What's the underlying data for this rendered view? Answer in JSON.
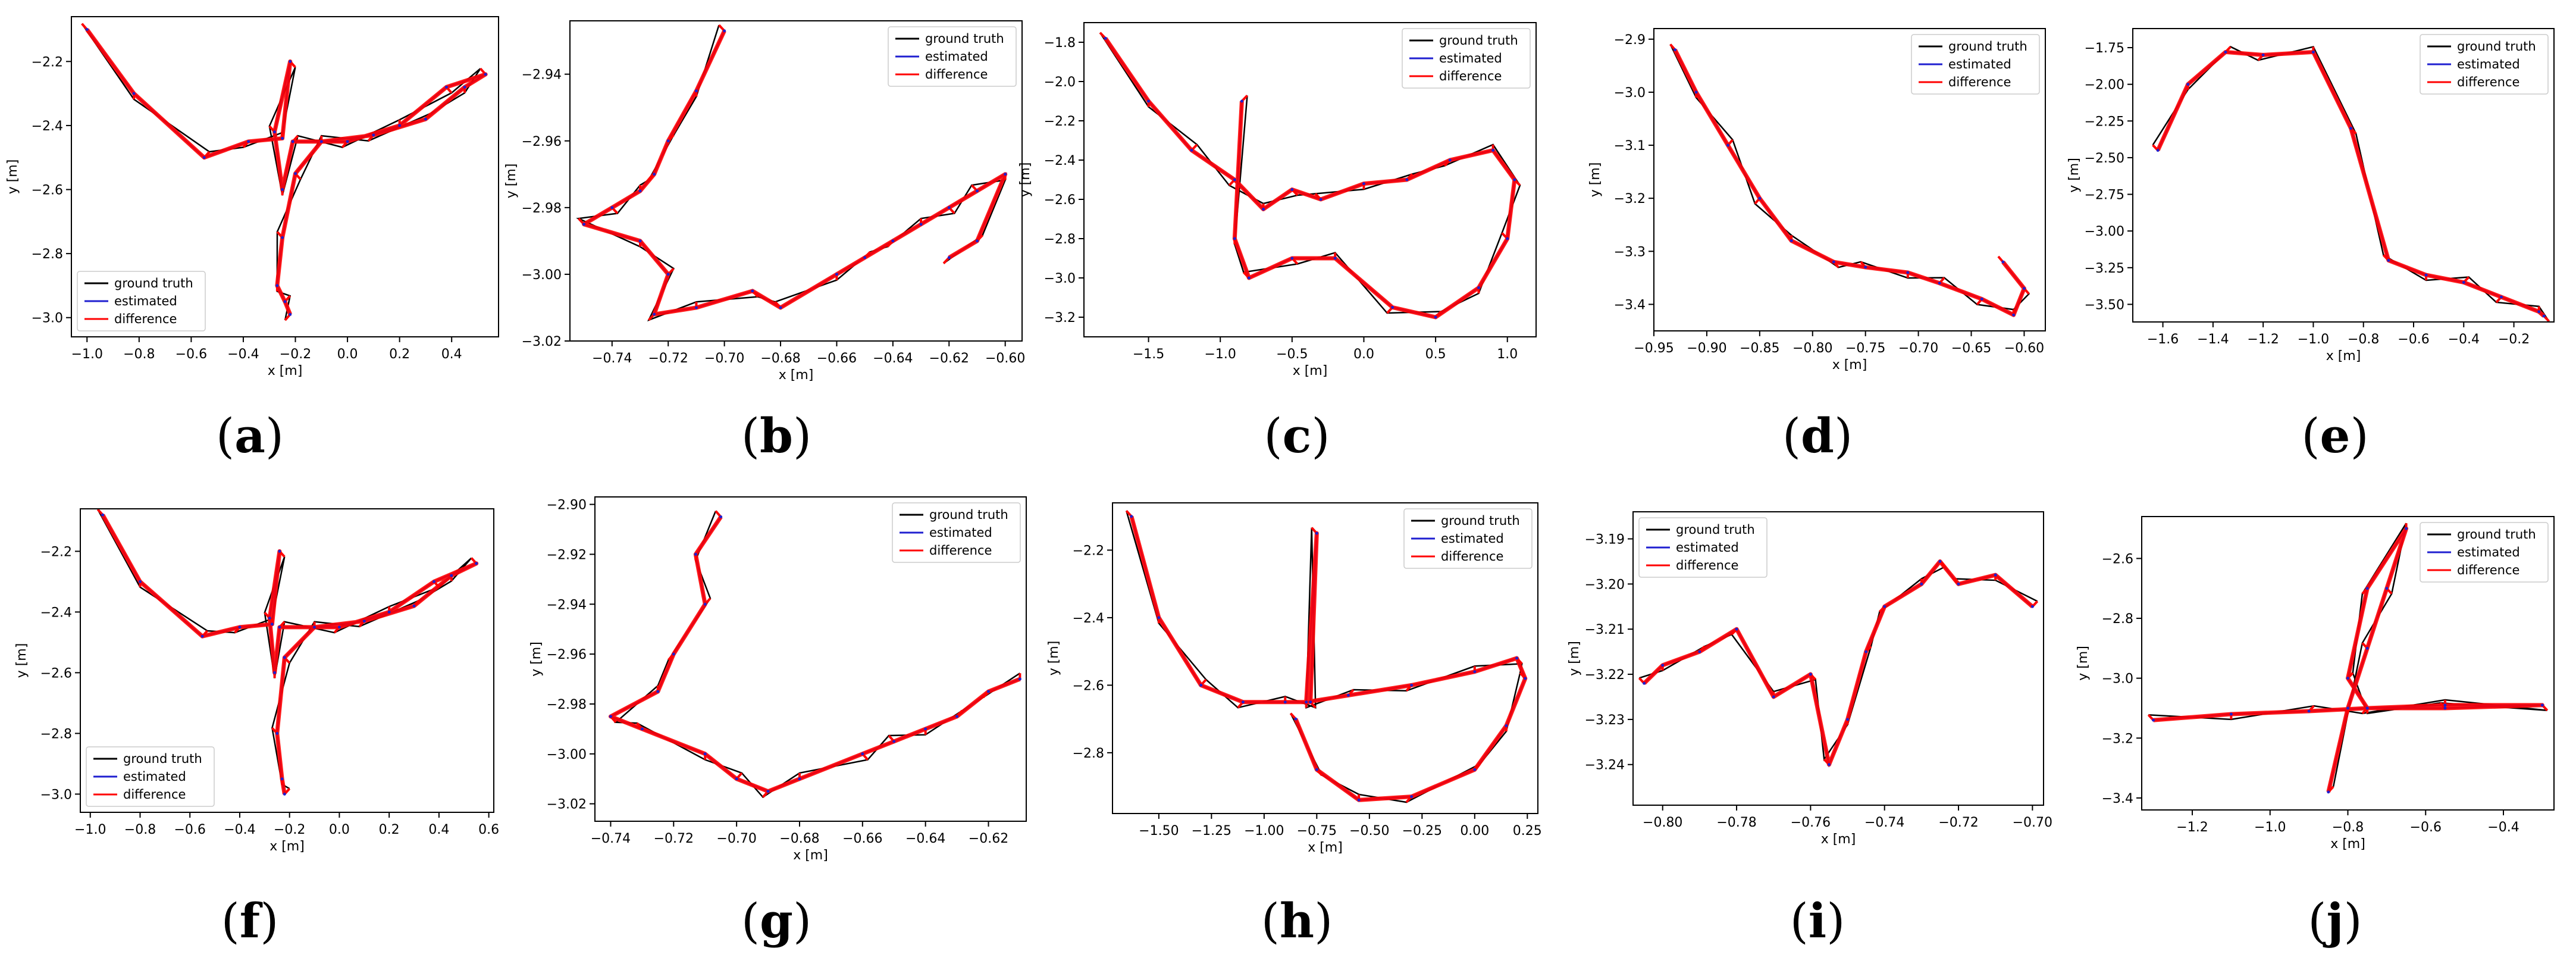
{
  "chart_data": [
    {
      "type": "line",
      "caption": "a",
      "xlabel": "x [m]",
      "ylabel": "y [m]",
      "xticks": [
        "−1.0",
        "−0.8",
        "−0.6",
        "−0.4",
        "−0.2",
        "0.0",
        "0.2",
        "0.4"
      ],
      "yticks": [
        "−2.2",
        "−2.4",
        "−2.6",
        "−2.8",
        "−3.0"
      ],
      "xlim": [
        -1.06,
        0.58
      ],
      "ylim": [
        -3.06,
        -2.06
      ],
      "legend_loc": "lower-left",
      "legend": [
        "ground truth",
        "estimated",
        "difference"
      ],
      "series": [
        {
          "name": "estimated",
          "x": [
            -1.0,
            -0.82,
            -0.55,
            -0.38,
            -0.25,
            -0.22,
            -0.28,
            -0.25,
            -0.21,
            0.0,
            0.2,
            0.38,
            0.53,
            0.45,
            0.3,
            0.1,
            -0.1,
            -0.2,
            -0.25,
            -0.27,
            -0.24,
            -0.22
          ],
          "y": [
            -2.1,
            -2.3,
            -2.5,
            -2.45,
            -2.44,
            -2.2,
            -2.42,
            -2.6,
            -2.45,
            -2.45,
            -2.4,
            -2.28,
            -2.24,
            -2.28,
            -2.38,
            -2.43,
            -2.45,
            -2.55,
            -2.75,
            -2.9,
            -2.95,
            -2.99
          ]
        }
      ]
    },
    {
      "type": "line",
      "caption": "b",
      "xlabel": "x [m]",
      "ylabel": "y [m]",
      "xticks": [
        "−0.74",
        "−0.72",
        "−0.70",
        "−0.68",
        "−0.66",
        "−0.64",
        "−0.62",
        "−0.60"
      ],
      "yticks": [
        "−2.94",
        "−2.96",
        "−2.98",
        "−3.00",
        "−3.02"
      ],
      "xlim": [
        -0.755,
        -0.594
      ],
      "ylim": [
        -3.02,
        -2.924
      ],
      "legend_loc": "top-right",
      "legend": [
        "ground truth",
        "estimated",
        "difference"
      ],
      "series": [
        {
          "name": "estimated",
          "x": [
            -0.7,
            -0.71,
            -0.72,
            -0.725,
            -0.73,
            -0.74,
            -0.75,
            -0.73,
            -0.72,
            -0.725,
            -0.71,
            -0.69,
            -0.68,
            -0.66,
            -0.65,
            -0.64,
            -0.63,
            -0.62,
            -0.61,
            -0.6,
            -0.61,
            -0.62
          ],
          "y": [
            -2.927,
            -2.945,
            -2.96,
            -2.97,
            -2.975,
            -2.98,
            -2.985,
            -2.99,
            -3.0,
            -3.012,
            -3.01,
            -3.005,
            -3.01,
            -3.0,
            -2.995,
            -2.99,
            -2.985,
            -2.98,
            -2.975,
            -2.97,
            -2.99,
            -2.995
          ]
        }
      ]
    },
    {
      "type": "line",
      "caption": "c",
      "xlabel": "x [m]",
      "ylabel": "y [m]",
      "xticks": [
        "−1.5",
        "−1.0",
        "−0.5",
        "0.0",
        "0.5",
        "1.0"
      ],
      "yticks": [
        "−1.8",
        "−2.0",
        "−2.2",
        "−2.4",
        "−2.6",
        "−2.8",
        "−3.0",
        "−3.2"
      ],
      "xlim": [
        -1.95,
        1.2
      ],
      "ylim": [
        -3.3,
        -1.7
      ],
      "legend_loc": "top-right",
      "legend": [
        "ground truth",
        "estimated",
        "difference"
      ],
      "series": [
        {
          "name": "estimated",
          "x": [
            -1.8,
            -1.5,
            -1.2,
            -0.9,
            -0.7,
            -0.5,
            -0.3,
            0.0,
            0.3,
            0.6,
            0.9,
            1.05,
            1.0,
            0.8,
            0.5,
            0.2,
            -0.2,
            -0.5,
            -0.8,
            -0.9,
            -0.85
          ],
          "y": [
            -1.78,
            -2.1,
            -2.35,
            -2.5,
            -2.65,
            -2.55,
            -2.6,
            -2.52,
            -2.5,
            -2.4,
            -2.35,
            -2.5,
            -2.8,
            -3.05,
            -3.2,
            -3.15,
            -2.9,
            -2.9,
            -3.0,
            -2.8,
            -2.1
          ]
        }
      ]
    },
    {
      "type": "line",
      "caption": "d",
      "xlabel": "x [m]",
      "ylabel": "y [m]",
      "xticks": [
        "−0.95",
        "−0.90",
        "−0.85",
        "−0.80",
        "−0.75",
        "−0.70",
        "−0.65",
        "−0.60"
      ],
      "yticks": [
        "−2.9",
        "−3.0",
        "−3.1",
        "−3.2",
        "−3.3",
        "−3.4"
      ],
      "xlim": [
        -0.95,
        -0.58
      ],
      "ylim": [
        -3.45,
        -2.88
      ],
      "legend_loc": "top-right",
      "legend": [
        "ground truth",
        "estimated",
        "difference"
      ],
      "series": [
        {
          "name": "estimated",
          "x": [
            -0.93,
            -0.91,
            -0.88,
            -0.85,
            -0.82,
            -0.78,
            -0.75,
            -0.71,
            -0.68,
            -0.64,
            -0.61,
            -0.6,
            -0.62
          ],
          "y": [
            -2.92,
            -3.0,
            -3.1,
            -3.2,
            -3.28,
            -3.32,
            -3.33,
            -3.34,
            -3.36,
            -3.39,
            -3.42,
            -3.37,
            -3.32
          ]
        }
      ]
    },
    {
      "type": "line",
      "caption": "e",
      "xlabel": "x [m]",
      "ylabel": "y [m]",
      "xticks": [
        "−1.6",
        "−1.4",
        "−1.2",
        "−1.0",
        "−0.8",
        "−0.6",
        "−0.4",
        "−0.2"
      ],
      "yticks": [
        "−1.75",
        "−2.00",
        "−2.25",
        "−2.50",
        "−2.75",
        "−3.00",
        "−3.25",
        "−3.50"
      ],
      "xlim": [
        -1.72,
        -0.04
      ],
      "ylim": [
        -3.62,
        -1.62
      ],
      "legend_loc": "top-right",
      "legend": [
        "ground truth",
        "estimated",
        "difference"
      ],
      "series": [
        {
          "name": "estimated",
          "x": [
            -1.62,
            -1.5,
            -1.35,
            -1.2,
            -1.0,
            -0.85,
            -0.7,
            -0.55,
            -0.4,
            -0.25,
            -0.1,
            -0.08
          ],
          "y": [
            -2.45,
            -2.0,
            -1.78,
            -1.8,
            -1.78,
            -2.3,
            -3.2,
            -3.3,
            -3.35,
            -3.45,
            -3.55,
            -3.58
          ]
        }
      ]
    },
    {
      "type": "line",
      "caption": "f",
      "xlabel": "x [m]",
      "ylabel": "y [m]",
      "xticks": [
        "−1.0",
        "−0.8",
        "−0.6",
        "−0.4",
        "−0.2",
        "0.0",
        "0.2",
        "0.4",
        "0.6"
      ],
      "yticks": [
        "−2.2",
        "−2.4",
        "−2.6",
        "−2.8",
        "−3.0"
      ],
      "xlim": [
        -1.04,
        0.62
      ],
      "ylim": [
        -3.06,
        -2.06
      ],
      "legend_loc": "lower-left",
      "legend": [
        "ground truth",
        "estimated",
        "difference"
      ],
      "series": [
        {
          "name": "estimated",
          "x": [
            -0.95,
            -0.8,
            -0.55,
            -0.4,
            -0.27,
            -0.24,
            -0.28,
            -0.26,
            -0.24,
            0.0,
            0.2,
            0.38,
            0.55,
            0.45,
            0.3,
            0.1,
            -0.1,
            -0.22,
            -0.25,
            -0.23,
            -0.22
          ],
          "y": [
            -2.08,
            -2.3,
            -2.48,
            -2.45,
            -2.44,
            -2.2,
            -2.42,
            -2.6,
            -2.45,
            -2.45,
            -2.4,
            -2.3,
            -2.24,
            -2.28,
            -2.38,
            -2.43,
            -2.45,
            -2.55,
            -2.8,
            -2.95,
            -3.0
          ]
        }
      ]
    },
    {
      "type": "line",
      "caption": "g",
      "xlabel": "x [m]",
      "ylabel": "y [m]",
      "xticks": [
        "−0.74",
        "−0.72",
        "−0.70",
        "−0.68",
        "−0.66",
        "−0.64",
        "−0.62"
      ],
      "yticks": [
        "−2.90",
        "−2.92",
        "−2.94",
        "−2.96",
        "−2.98",
        "−3.00",
        "−3.02"
      ],
      "xlim": [
        -0.745,
        -0.608
      ],
      "ylim": [
        -3.027,
        -2.897
      ],
      "legend_loc": "top-right",
      "legend": [
        "ground truth",
        "estimated",
        "difference"
      ],
      "series": [
        {
          "name": "estimated",
          "x": [
            -0.705,
            -0.713,
            -0.71,
            -0.72,
            -0.725,
            -0.74,
            -0.73,
            -0.71,
            -0.7,
            -0.69,
            -0.68,
            -0.66,
            -0.65,
            -0.64,
            -0.63,
            -0.62,
            -0.61
          ],
          "y": [
            -2.905,
            -2.92,
            -2.94,
            -2.96,
            -2.975,
            -2.985,
            -2.99,
            -3.0,
            -3.01,
            -3.015,
            -3.01,
            -3.0,
            -2.995,
            -2.99,
            -2.985,
            -2.975,
            -2.97
          ]
        }
      ]
    },
    {
      "type": "line",
      "caption": "h",
      "xlabel": "x [m]",
      "ylabel": "y [m]",
      "xticks": [
        "−1.50",
        "−1.25",
        "−1.00",
        "−0.75",
        "−0.50",
        "−0.25",
        "0.00",
        "0.25"
      ],
      "yticks": [
        "−2.2",
        "−2.4",
        "−2.6",
        "−2.8"
      ],
      "xlim": [
        -1.72,
        0.3
      ],
      "ylim": [
        -2.98,
        -2.06
      ],
      "legend_loc": "top-right",
      "legend": [
        "ground truth",
        "estimated",
        "difference"
      ],
      "series": [
        {
          "name": "estimated",
          "x": [
            -1.63,
            -1.5,
            -1.3,
            -1.1,
            -0.9,
            -0.78,
            -0.75,
            -0.8,
            -0.6,
            -0.3,
            0.0,
            0.2,
            0.24,
            0.15,
            0.0,
            -0.3,
            -0.55,
            -0.75,
            -0.85
          ],
          "y": [
            -2.1,
            -2.4,
            -2.6,
            -2.65,
            -2.65,
            -2.65,
            -2.15,
            -2.65,
            -2.63,
            -2.6,
            -2.56,
            -2.52,
            -2.58,
            -2.72,
            -2.85,
            -2.93,
            -2.94,
            -2.85,
            -2.7
          ]
        }
      ]
    },
    {
      "type": "line",
      "caption": "i",
      "xlabel": "x [m]",
      "ylabel": "y [m]",
      "xticks": [
        "−0.80",
        "−0.78",
        "−0.76",
        "−0.74",
        "−0.72",
        "−0.70"
      ],
      "yticks": [
        "−3.19",
        "−3.20",
        "−3.21",
        "−3.22",
        "−3.23",
        "−3.24"
      ],
      "xlim": [
        -0.808,
        -0.697
      ],
      "ylim": [
        -3.249,
        -3.184
      ],
      "legend_loc": "top-left",
      "legend": [
        "ground truth",
        "estimated",
        "difference"
      ],
      "series": [
        {
          "name": "estimated",
          "x": [
            -0.805,
            -0.8,
            -0.79,
            -0.78,
            -0.77,
            -0.76,
            -0.755,
            -0.75,
            -0.745,
            -0.74,
            -0.73,
            -0.725,
            -0.72,
            -0.71,
            -0.7
          ],
          "y": [
            -3.222,
            -3.218,
            -3.215,
            -3.21,
            -3.225,
            -3.22,
            -3.24,
            -3.23,
            -3.215,
            -3.205,
            -3.2,
            -3.195,
            -3.2,
            -3.198,
            -3.205
          ]
        }
      ]
    },
    {
      "type": "line",
      "caption": "j",
      "xlabel": "x [m]",
      "ylabel": "y [m]",
      "xticks": [
        "−1.2",
        "−1.0",
        "−0.8",
        "−0.6",
        "−0.4"
      ],
      "yticks": [
        "−2.6",
        "−2.8",
        "−3.0",
        "−3.2",
        "−3.4"
      ],
      "xlim": [
        -1.33,
        -0.27
      ],
      "ylim": [
        -3.44,
        -2.46
      ],
      "legend_loc": "top-right",
      "legend": [
        "ground truth",
        "estimated",
        "difference"
      ],
      "series": [
        {
          "name": "estimated",
          "x": [
            -1.3,
            -1.1,
            -0.9,
            -0.75,
            -0.55,
            -0.3,
            -0.55,
            -0.75,
            -0.8,
            -0.75,
            -0.65,
            -0.7,
            -0.75,
            -0.8,
            -0.85
          ],
          "y": [
            -3.14,
            -3.12,
            -3.11,
            -3.1,
            -3.09,
            -3.09,
            -3.1,
            -3.1,
            -3.0,
            -2.7,
            -2.5,
            -2.7,
            -2.9,
            -3.1,
            -3.38
          ]
        }
      ]
    }
  ],
  "colors": {
    "ground_truth": "#000000",
    "estimated": "#1f1fd0",
    "difference": "#ff0000",
    "axis": "#000000"
  }
}
